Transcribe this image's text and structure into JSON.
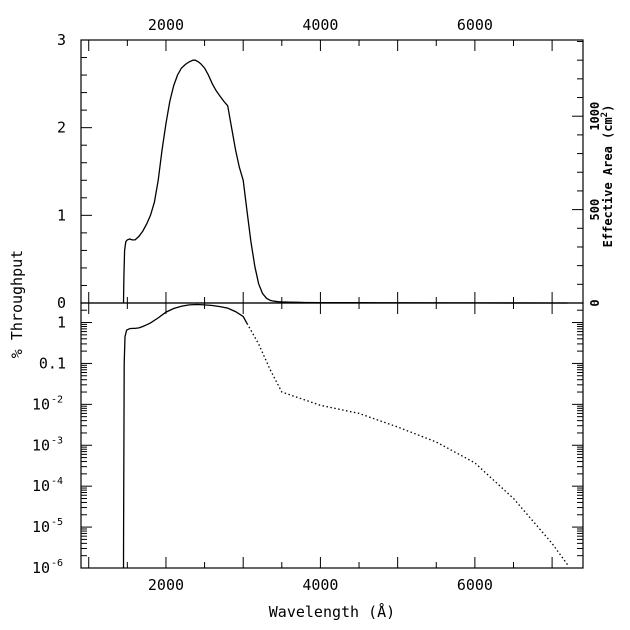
{
  "chart_data": [
    {
      "type": "line",
      "panel": "top",
      "xlim": [
        900,
        7400
      ],
      "ylim": [
        0,
        3
      ],
      "ylabel": "% Throughput",
      "xticks_top": [
        "2000",
        "4000",
        "6000"
      ],
      "xtick_values_top": [
        2000,
        4000,
        6000
      ],
      "yticks": [
        "0",
        "1",
        "2",
        "3"
      ],
      "ytick_values": [
        0,
        1,
        2,
        3
      ],
      "right_axis": {
        "label": "Effective Area (cm",
        "label_sup": "2",
        "label_end": ")",
        "ticks": [
          "0",
          "500",
          "1000"
        ],
        "tick_values": [
          0,
          500,
          1000
        ],
        "lim": [
          0,
          1408
        ]
      },
      "series": [
        {
          "style": "solid",
          "x": [
            1450,
            1455,
            1465,
            1480,
            1500,
            1530,
            1560,
            1600,
            1650,
            1700,
            1750,
            1800,
            1850,
            1900,
            1950,
            2000,
            2050,
            2100,
            2150,
            2200,
            2250,
            2300,
            2350,
            2380,
            2420,
            2450,
            2500,
            2550,
            2600,
            2650,
            2700,
            2750,
            2800,
            2850,
            2900,
            2950,
            3000,
            3050,
            3100,
            3150,
            3200,
            3250,
            3300,
            3350,
            3400,
            3450,
            3500,
            3600,
            3700,
            3800,
            4000,
            4500,
            5000,
            6000,
            7000,
            7200
          ],
          "y": [
            0.0,
            0.3,
            0.6,
            0.7,
            0.72,
            0.73,
            0.72,
            0.72,
            0.76,
            0.82,
            0.9,
            1.0,
            1.15,
            1.4,
            1.75,
            2.05,
            2.3,
            2.48,
            2.6,
            2.68,
            2.72,
            2.75,
            2.77,
            2.77,
            2.75,
            2.73,
            2.68,
            2.6,
            2.5,
            2.42,
            2.36,
            2.3,
            2.25,
            2.0,
            1.75,
            1.55,
            1.4,
            1.05,
            0.7,
            0.42,
            0.22,
            0.11,
            0.055,
            0.03,
            0.02,
            0.015,
            0.012,
            0.01,
            0.008,
            0.006,
            0.005,
            0.003,
            0.002,
            0.0008,
            0.0002,
            0.0001
          ]
        }
      ]
    },
    {
      "type": "line",
      "panel": "bottom",
      "xlim": [
        900,
        7400
      ],
      "ylim": [
        1e-06,
        3
      ],
      "yscale": "log",
      "xlabel": "Wavelength (Å)",
      "xticks": [
        "2000",
        "4000",
        "6000"
      ],
      "xtick_values": [
        2000,
        4000,
        6000
      ],
      "yticks": [
        {
          "base": "1",
          "exp": ""
        },
        {
          "base": "0.1",
          "exp": ""
        },
        {
          "base": "10",
          "exp": "-2"
        },
        {
          "base": "10",
          "exp": "-3"
        },
        {
          "base": "10",
          "exp": "-4"
        },
        {
          "base": "10",
          "exp": "-5"
        },
        {
          "base": "10",
          "exp": "-6"
        }
      ],
      "ytick_values": [
        1,
        0.1,
        0.01,
        0.001,
        0.0001,
        1e-05,
        1e-06
      ],
      "series": [
        {
          "style": "solid",
          "x": [
            1450,
            1452,
            1455,
            1460,
            1470,
            1490,
            1530,
            1570,
            1600,
            1650,
            1700,
            1750,
            1800,
            1900,
            2000,
            2100,
            2200,
            2300,
            2400,
            2500,
            2600,
            2700,
            2800,
            2900,
            3000,
            3050
          ],
          "y": [
            1e-06,
            1e-05,
            0.001,
            0.1,
            0.45,
            0.65,
            0.71,
            0.72,
            0.72,
            0.74,
            0.8,
            0.88,
            0.98,
            1.3,
            1.8,
            2.2,
            2.5,
            2.7,
            2.75,
            2.7,
            2.6,
            2.45,
            2.25,
            1.85,
            1.4,
            0.95
          ]
        },
        {
          "style": "dotted",
          "x": [
            3050,
            3200,
            3350,
            3500,
            4000,
            4500,
            5000,
            5500,
            6000,
            6500,
            7000,
            7200
          ],
          "y": [
            0.95,
            0.3,
            0.07,
            0.02,
            0.0095,
            0.006,
            0.0028,
            0.0012,
            0.00037,
            5e-05,
            4e-06,
            1.2e-06
          ]
        }
      ]
    }
  ]
}
